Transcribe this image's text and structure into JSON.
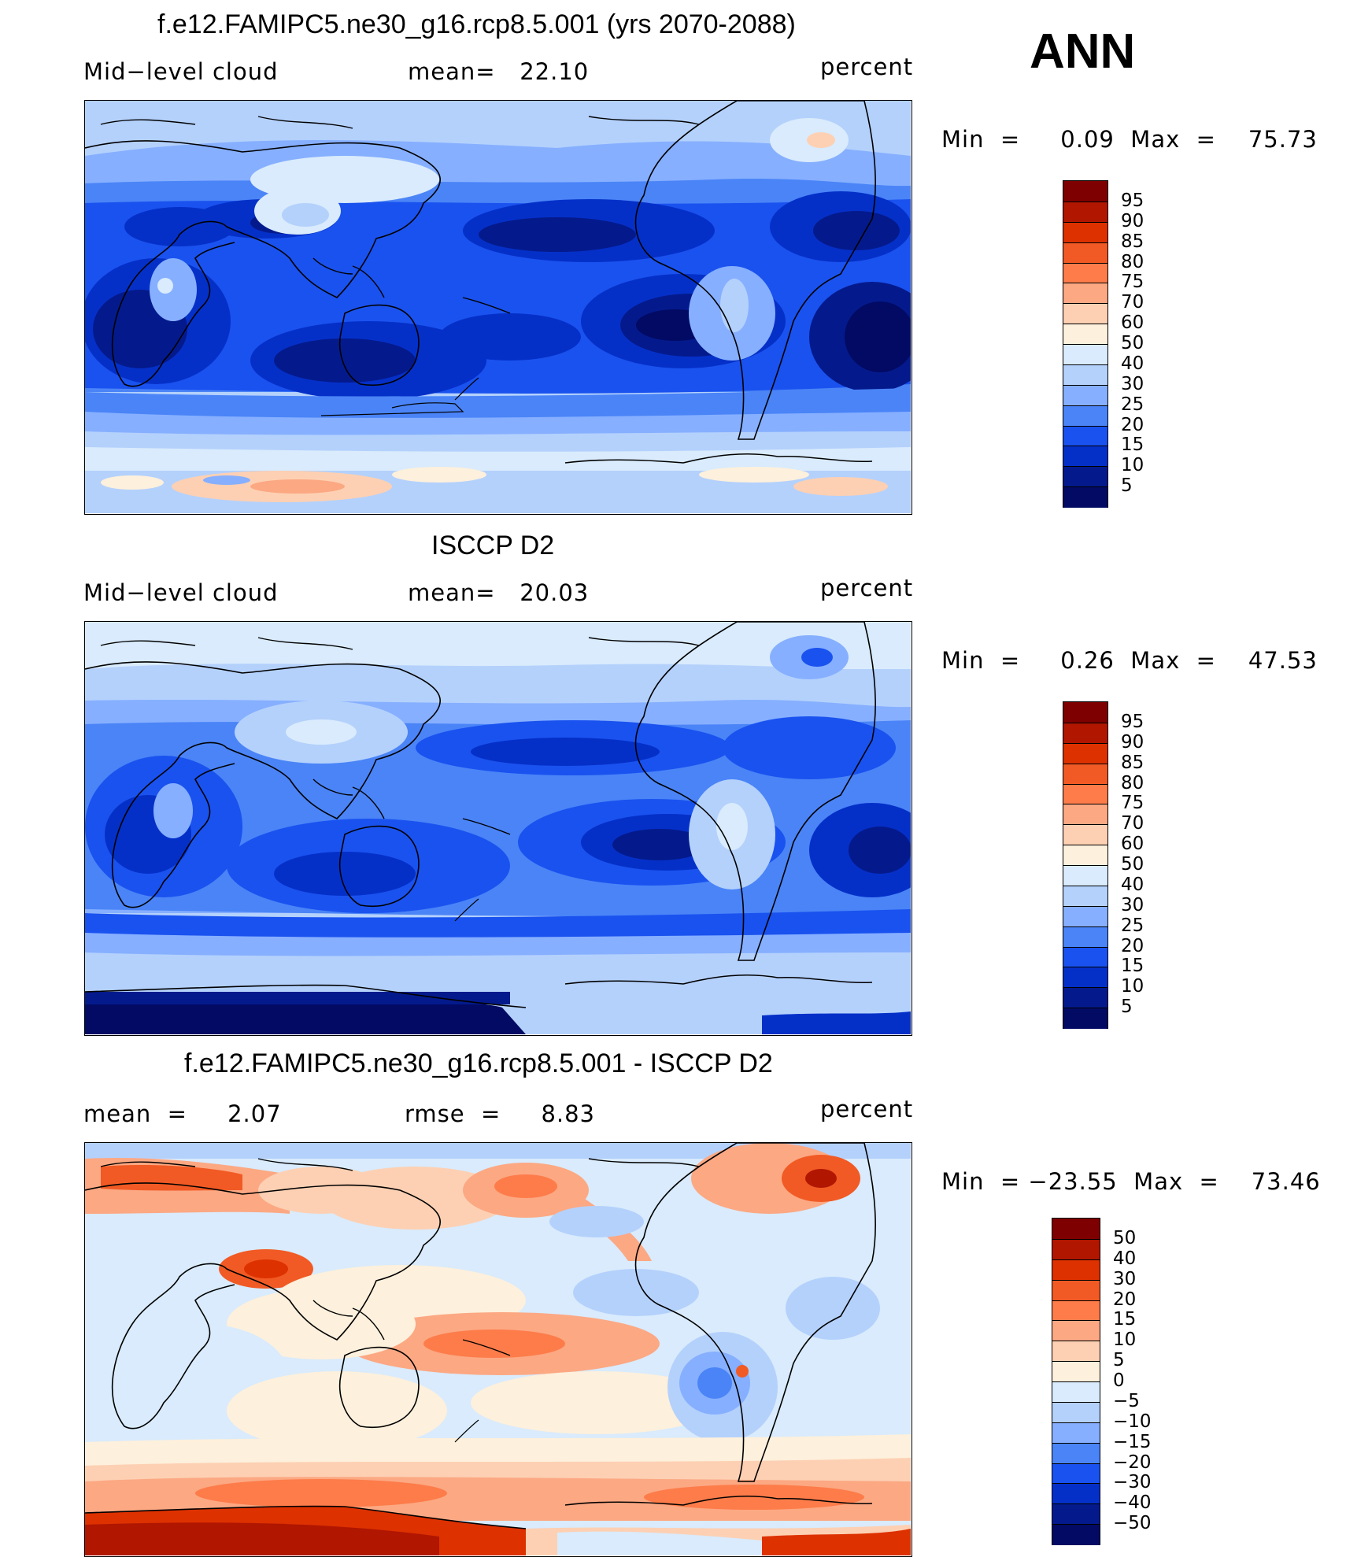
{
  "season": "ANN",
  "panels": [
    {
      "title": "f.e12.FAMIPC5.ne30_g16.rcp8.5.001 (yrs 2070-2088)",
      "left_text": "Mid−level cloud",
      "center_text": "mean=   22.10",
      "right_text": "percent",
      "minmax": "Min  =     0.09  Max  =    75.73",
      "colorbar": [
        "95",
        "90",
        "85",
        "80",
        "75",
        "70",
        "60",
        "50",
        "40",
        "30",
        "25",
        "20",
        "15",
        "10",
        "5"
      ],
      "colors": [
        "#7f0000",
        "#b01600",
        "#dd3100",
        "#f15a24",
        "#fd7c4a",
        "#fca883",
        "#fdd0b3",
        "#fdf0dc",
        "#d9ebfc",
        "#b4d1fc",
        "#86afff",
        "#4a84f7",
        "#1a52ef",
        "#0530c8",
        "#041a8c",
        "#020a64"
      ]
    },
    {
      "title": "ISCCP D2",
      "left_text": "Mid−level cloud",
      "center_text": "mean=   20.03",
      "right_text": "percent",
      "minmax": "Min  =     0.26  Max  =    47.53",
      "colorbar": [
        "95",
        "90",
        "85",
        "80",
        "75",
        "70",
        "60",
        "50",
        "40",
        "30",
        "25",
        "20",
        "15",
        "10",
        "5"
      ],
      "colors": [
        "#7f0000",
        "#b01600",
        "#dd3100",
        "#f15a24",
        "#fd7c4a",
        "#fca883",
        "#fdd0b3",
        "#fdf0dc",
        "#d9ebfc",
        "#b4d1fc",
        "#86afff",
        "#4a84f7",
        "#1a52ef",
        "#0530c8",
        "#041a8c",
        "#020a64"
      ]
    },
    {
      "title": "f.e12.FAMIPC5.ne30_g16.rcp8.5.001 - ISCCP D2",
      "left_text": "mean  =     2.07",
      "center_text": "rmse  =     8.83",
      "right_text": "percent",
      "minmax": "Min  = −23.55  Max  =    73.46",
      "colorbar": [
        "50",
        "40",
        "30",
        "20",
        "15",
        "10",
        "5",
        "0",
        "−5",
        "−10",
        "−15",
        "−20",
        "−30",
        "−40",
        "−50"
      ],
      "colors": [
        "#7f0000",
        "#b01600",
        "#dd3100",
        "#f15a24",
        "#fd7c4a",
        "#fca883",
        "#fdd0b3",
        "#fdf0dc",
        "#d9ebfc",
        "#b4d1fc",
        "#86afff",
        "#4a84f7",
        "#1a52ef",
        "#0530c8",
        "#041a8c",
        "#020a64"
      ]
    }
  ]
}
